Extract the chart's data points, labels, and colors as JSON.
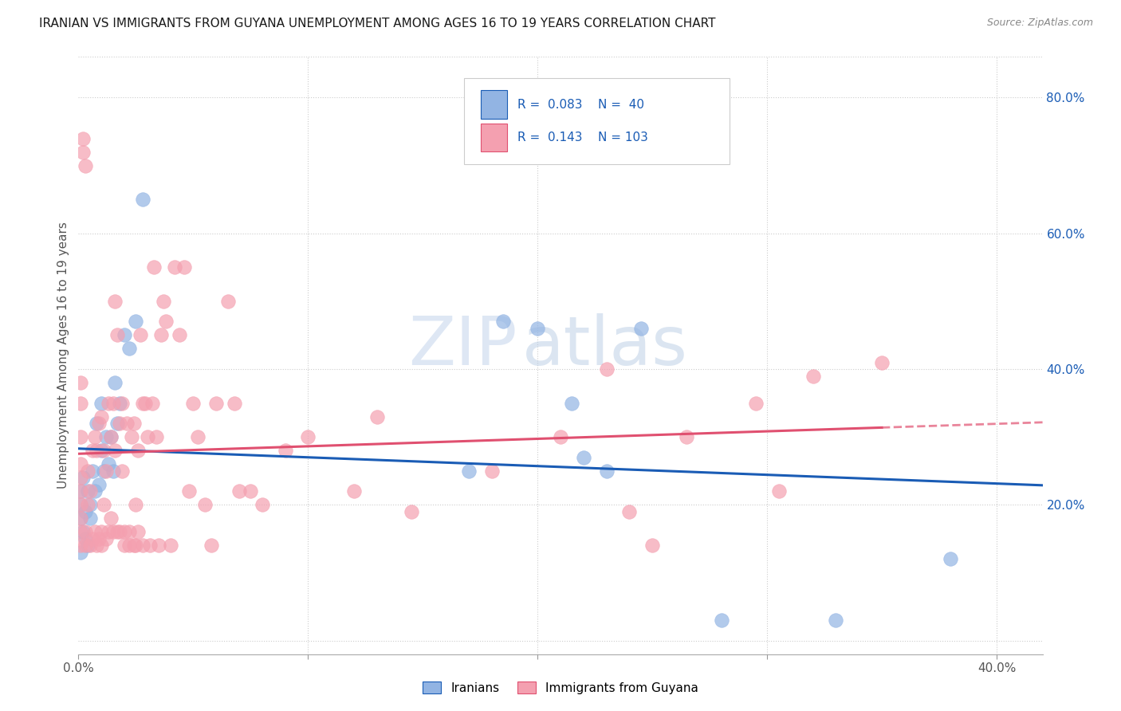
{
  "title": "IRANIAN VS IMMIGRANTS FROM GUYANA UNEMPLOYMENT AMONG AGES 16 TO 19 YEARS CORRELATION CHART",
  "source": "Source: ZipAtlas.com",
  "ylabel": "Unemployment Among Ages 16 to 19 years",
  "xlim": [
    0.0,
    0.42
  ],
  "ylim": [
    -0.02,
    0.86
  ],
  "y_ticks_right": [
    0.0,
    0.2,
    0.4,
    0.6,
    0.8
  ],
  "y_tick_labels_right": [
    "",
    "20.0%",
    "40.0%",
    "60.0%",
    "80.0%"
  ],
  "iranians_color": "#92b4e3",
  "guyana_color": "#f4a0b0",
  "iranians_line_color": "#1a5cb5",
  "guyana_line_color": "#e05070",
  "legend_iranians_label": "Iranians",
  "legend_guyana_label": "Immigrants from Guyana",
  "R_iranians": 0.083,
  "N_iranians": 40,
  "R_guyana": 0.143,
  "N_guyana": 103,
  "watermark_zip": "ZIP",
  "watermark_atlas": "atlas",
  "iranians_x": [
    0.001,
    0.001,
    0.001,
    0.001,
    0.002,
    0.002,
    0.003,
    0.003,
    0.004,
    0.004,
    0.005,
    0.005,
    0.006,
    0.007,
    0.008,
    0.009,
    0.01,
    0.01,
    0.011,
    0.012,
    0.013,
    0.014,
    0.015,
    0.016,
    0.017,
    0.018,
    0.02,
    0.022,
    0.025,
    0.028,
    0.17,
    0.185,
    0.2,
    0.215,
    0.22,
    0.23,
    0.245,
    0.28,
    0.33,
    0.38
  ],
  "iranians_y": [
    0.2,
    0.18,
    0.22,
    0.13,
    0.16,
    0.24,
    0.15,
    0.19,
    0.22,
    0.14,
    0.2,
    0.18,
    0.25,
    0.22,
    0.32,
    0.23,
    0.28,
    0.35,
    0.25,
    0.3,
    0.26,
    0.3,
    0.25,
    0.38,
    0.32,
    0.35,
    0.45,
    0.43,
    0.47,
    0.65,
    0.25,
    0.47,
    0.46,
    0.35,
    0.27,
    0.25,
    0.46,
    0.03,
    0.03,
    0.12
  ],
  "guyana_x": [
    0.001,
    0.001,
    0.001,
    0.001,
    0.001,
    0.001,
    0.001,
    0.001,
    0.001,
    0.001,
    0.002,
    0.002,
    0.003,
    0.003,
    0.003,
    0.004,
    0.004,
    0.005,
    0.005,
    0.006,
    0.006,
    0.007,
    0.007,
    0.008,
    0.008,
    0.009,
    0.009,
    0.01,
    0.01,
    0.01,
    0.011,
    0.011,
    0.012,
    0.012,
    0.013,
    0.013,
    0.014,
    0.014,
    0.015,
    0.015,
    0.016,
    0.016,
    0.017,
    0.017,
    0.018,
    0.018,
    0.019,
    0.019,
    0.02,
    0.02,
    0.021,
    0.022,
    0.022,
    0.023,
    0.024,
    0.024,
    0.025,
    0.025,
    0.026,
    0.026,
    0.027,
    0.028,
    0.028,
    0.029,
    0.03,
    0.031,
    0.032,
    0.033,
    0.034,
    0.035,
    0.036,
    0.037,
    0.038,
    0.04,
    0.042,
    0.044,
    0.046,
    0.048,
    0.05,
    0.052,
    0.055,
    0.058,
    0.06,
    0.065,
    0.068,
    0.07,
    0.075,
    0.08,
    0.09,
    0.1,
    0.12,
    0.13,
    0.145,
    0.18,
    0.21,
    0.23,
    0.24,
    0.25,
    0.265,
    0.295,
    0.305,
    0.32,
    0.35
  ],
  "guyana_y": [
    0.26,
    0.24,
    0.22,
    0.2,
    0.18,
    0.16,
    0.14,
    0.3,
    0.35,
    0.38,
    0.74,
    0.72,
    0.7,
    0.14,
    0.16,
    0.2,
    0.25,
    0.14,
    0.22,
    0.15,
    0.28,
    0.16,
    0.3,
    0.14,
    0.28,
    0.15,
    0.32,
    0.16,
    0.33,
    0.14,
    0.2,
    0.28,
    0.15,
    0.25,
    0.16,
    0.35,
    0.18,
    0.3,
    0.16,
    0.35,
    0.28,
    0.5,
    0.16,
    0.45,
    0.32,
    0.16,
    0.35,
    0.25,
    0.14,
    0.16,
    0.32,
    0.14,
    0.16,
    0.3,
    0.14,
    0.32,
    0.2,
    0.14,
    0.28,
    0.16,
    0.45,
    0.35,
    0.14,
    0.35,
    0.3,
    0.14,
    0.35,
    0.55,
    0.3,
    0.14,
    0.45,
    0.5,
    0.47,
    0.14,
    0.55,
    0.45,
    0.55,
    0.22,
    0.35,
    0.3,
    0.2,
    0.14,
    0.35,
    0.5,
    0.35,
    0.22,
    0.22,
    0.2,
    0.28,
    0.3,
    0.22,
    0.33,
    0.19,
    0.25,
    0.3,
    0.4,
    0.19,
    0.14,
    0.3,
    0.35,
    0.22,
    0.39,
    0.41
  ]
}
